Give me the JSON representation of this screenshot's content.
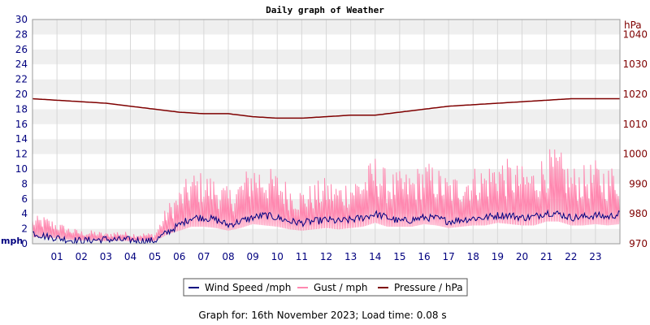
{
  "chart_data": {
    "type": "line",
    "title": "Daily graph of Weather",
    "footer": "Graph for: 16th November 2023; Load time: 0.08 s",
    "left_axis": {
      "unit": "mph",
      "ylim": [
        0,
        30
      ],
      "ticks": [
        "0",
        "2",
        "4",
        "6",
        "8",
        "10",
        "12",
        "14",
        "16",
        "18",
        "20",
        "22",
        "24",
        "26",
        "28",
        "30"
      ]
    },
    "right_axis": {
      "unit": "hPa",
      "ylim": [
        970,
        1045
      ],
      "ticks": [
        "970",
        "980",
        "990",
        "1000",
        "1010",
        "1020",
        "1030",
        "1040"
      ]
    },
    "x_axis": {
      "xlim": [
        0,
        24
      ],
      "ticks": [
        "01",
        "02",
        "03",
        "04",
        "05",
        "06",
        "07",
        "08",
        "09",
        "10",
        "11",
        "12",
        "13",
        "14",
        "15",
        "16",
        "17",
        "18",
        "19",
        "20",
        "21",
        "22",
        "23"
      ]
    },
    "grid": true,
    "legend_position": "bottom-center",
    "colors": {
      "wind": "#000080",
      "gust": "#ff88b0",
      "pressure": "#7f0000",
      "band": "#efefef"
    },
    "series": [
      {
        "name": "Wind Speed /mph",
        "axis": "left",
        "color": "#000080",
        "x": [
          0,
          0.5,
          1,
          1.5,
          2,
          2.5,
          3,
          3.5,
          4,
          4.5,
          5,
          5.5,
          6,
          6.5,
          7,
          7.5,
          8,
          8.5,
          9,
          9.5,
          10,
          10.5,
          11,
          11.5,
          12,
          12.5,
          13,
          13.5,
          14,
          14.5,
          15,
          15.5,
          16,
          16.5,
          17,
          17.5,
          18,
          18.5,
          19,
          19.5,
          20,
          20.5,
          21,
          21.5,
          22,
          22.5,
          23,
          23.5,
          24
        ],
        "values": [
          1.5,
          1.0,
          0.8,
          0.5,
          0.4,
          0.5,
          0.6,
          0.5,
          0.5,
          0.4,
          0.4,
          1.5,
          2.5,
          3.5,
          3.5,
          3.2,
          2.5,
          3.0,
          3.5,
          3.8,
          3.5,
          3.0,
          2.8,
          3.0,
          3.2,
          3.0,
          3.2,
          3.5,
          4.0,
          3.5,
          3.0,
          3.2,
          3.5,
          3.4,
          3.0,
          3.2,
          3.4,
          3.5,
          3.8,
          3.8,
          3.5,
          3.6,
          4.2,
          4.0,
          3.5,
          3.6,
          3.8,
          3.6,
          4.0
        ]
      },
      {
        "name": "Gust / mph",
        "axis": "left",
        "color": "#ff88b0",
        "x": [
          0,
          0.5,
          1,
          1.5,
          2,
          2.5,
          3,
          3.5,
          4,
          4.5,
          5,
          5.5,
          6,
          6.5,
          7,
          7.5,
          8,
          8.5,
          9,
          9.5,
          10,
          10.5,
          11,
          11.5,
          12,
          12.5,
          13,
          13.5,
          14,
          14.5,
          15,
          15.5,
          16,
          16.5,
          17,
          17.5,
          18,
          18.5,
          19,
          19.5,
          20,
          20.5,
          21,
          21.5,
          22,
          22.5,
          23,
          23.5,
          24
        ],
        "values": [
          2.5,
          2.5,
          2.0,
          1.5,
          1.2,
          1.2,
          1.0,
          1.2,
          1.0,
          1.0,
          1.0,
          3.5,
          5.0,
          6.5,
          6.5,
          6.0,
          5.0,
          6.0,
          7.5,
          7.0,
          6.5,
          5.5,
          5.0,
          5.5,
          6.0,
          5.5,
          6.0,
          6.5,
          8.0,
          6.5,
          6.5,
          6.5,
          7.5,
          7.0,
          6.0,
          6.5,
          7.0,
          7.0,
          8.0,
          7.5,
          7.0,
          7.0,
          8.5,
          8.5,
          7.0,
          7.0,
          7.5,
          7.0,
          7.5
        ]
      },
      {
        "name": "Pressure / hPa",
        "axis": "right",
        "color": "#7f0000",
        "x": [
          0,
          1,
          2,
          3,
          4,
          5,
          6,
          7,
          8,
          9,
          10,
          11,
          12,
          13,
          14,
          15,
          16,
          17,
          18,
          19,
          20,
          21,
          22,
          23,
          24
        ],
        "values": [
          1018.5,
          1018.0,
          1017.5,
          1017.0,
          1016.0,
          1015.0,
          1014.0,
          1013.5,
          1013.5,
          1012.5,
          1012.0,
          1012.0,
          1012.5,
          1013.0,
          1013.0,
          1014.0,
          1015.0,
          1016.0,
          1016.5,
          1017.0,
          1017.5,
          1018.0,
          1018.5,
          1018.5,
          1018.5
        ]
      }
    ]
  }
}
